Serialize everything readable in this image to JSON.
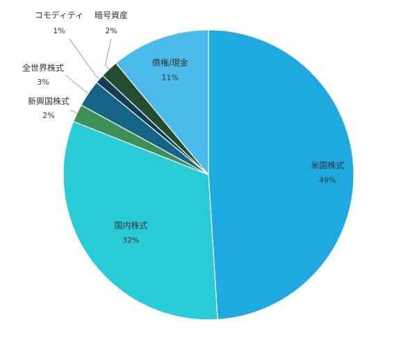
{
  "chart_data": {
    "type": "pie",
    "title": "",
    "start_angle_deg": 0,
    "direction": "clockwise",
    "slices": [
      {
        "label": "米国株式",
        "value": 49,
        "display": "49%",
        "color": "#1EAAE0",
        "label_placement": "inside"
      },
      {
        "label": "国内株式",
        "value": 32,
        "display": "32%",
        "color": "#28CCD6",
        "label_placement": "inside"
      },
      {
        "label": "新興国株式",
        "value": 2,
        "display": "2%",
        "color": "#3E9156",
        "label_placement": "outside"
      },
      {
        "label": "全世界株式",
        "value": 3,
        "display": "3%",
        "color": "#146486",
        "label_placement": "outside"
      },
      {
        "label": "コモディティ",
        "value": 1,
        "display": "1%",
        "color": "#123F56",
        "label_placement": "outside"
      },
      {
        "label": "暗号資産",
        "value": 2,
        "display": "2%",
        "color": "#254E31",
        "label_placement": "outside"
      },
      {
        "label": "債権/現金",
        "value": 11,
        "display": "11%",
        "color": "#4BBBEB",
        "label_placement": "inside"
      }
    ]
  }
}
